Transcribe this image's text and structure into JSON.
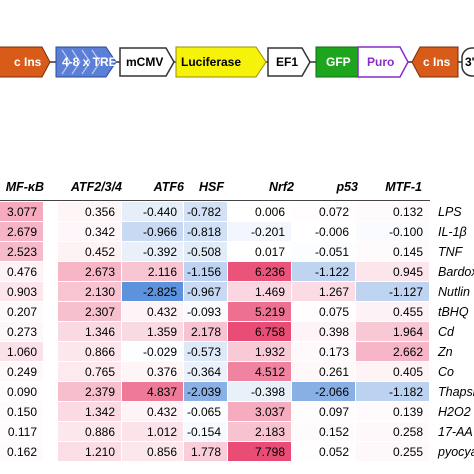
{
  "construct": {
    "elements": [
      "c Ins",
      "4-8 x TRE",
      "mCMV",
      "Luciferase",
      "EF1",
      "GFP",
      "Puro",
      "c Ins",
      "3'"
    ]
  },
  "heatmap": {
    "columns": [
      "NF-κB",
      "ATF2/3/4",
      "ATF6",
      "HSF",
      "Nrf2",
      "p53",
      "MTF-1"
    ],
    "header_display": [
      "MF-κB",
      "ATF2/3/4",
      "ATF6",
      "HSF",
      "Nrf2",
      "p53",
      "MTF-1"
    ],
    "rows": [
      {
        "treatment": "LPS",
        "values": [
          "3.077",
          "0.356",
          "-0.440",
          "-0.782",
          "0.006",
          "0.072",
          "0.132"
        ]
      },
      {
        "treatment": "IL-1β",
        "values": [
          "2.679",
          "0.342",
          "-0.966",
          "-0.818",
          "-0.201",
          "-0.006",
          "-0.100"
        ]
      },
      {
        "treatment": "TNF",
        "values": [
          "2.523",
          "0.452",
          "-0.392",
          "-0.508",
          "0.017",
          "-0.051",
          "0.145"
        ]
      },
      {
        "treatment": "Bardox",
        "values": [
          "0.476",
          "2.673",
          "2.116",
          "-1.156",
          "6.236",
          "-1.122",
          "0.945"
        ]
      },
      {
        "treatment": "Nutlin",
        "values": [
          "0.903",
          "2.130",
          "-2.825",
          "-0.967",
          "1.469",
          "1.267",
          "-1.127"
        ]
      },
      {
        "treatment": "tBHQ",
        "values": [
          "0.207",
          "2.307",
          "0.432",
          "-0.093",
          "5.219",
          "0.075",
          "0.455"
        ]
      },
      {
        "treatment": "Cd",
        "values": [
          "0.273",
          "1.346",
          "1.359",
          "2.178",
          "6.758",
          "0.398",
          "1.964"
        ]
      },
      {
        "treatment": "Zn",
        "values": [
          "1.060",
          "0.866",
          "-0.029",
          "-0.573",
          "1.932",
          "0.173",
          "2.662"
        ]
      },
      {
        "treatment": "Co",
        "values": [
          "0.249",
          "0.765",
          "0.376",
          "-0.364",
          "4.512",
          "0.261",
          "0.405"
        ]
      },
      {
        "treatment": "Thapsi",
        "values": [
          "0.090",
          "2.379",
          "4.837",
          "-2.039",
          "-0.398",
          "-2.066",
          "-1.182"
        ]
      },
      {
        "treatment": "H2O2",
        "values": [
          "0.150",
          "1.342",
          "0.432",
          "-0.065",
          "3.037",
          "0.097",
          "0.139"
        ]
      },
      {
        "treatment": "17-AA",
        "values": [
          "0.117",
          "0.886",
          "1.012",
          "-0.154",
          "2.183",
          "0.152",
          "0.258"
        ]
      },
      {
        "treatment": "pyocya",
        "values": [
          "0.162",
          "1.210",
          "0.856",
          "1.778",
          "7.798",
          "0.052",
          "0.255"
        ]
      }
    ]
  },
  "colors": {
    "positive": "#e8436e",
    "negative": "#4a86d8",
    "neutral": "#ffffff",
    "gfp": "#1ea51e",
    "luciferase": "#f7f20a",
    "tre": "#5b7fd6",
    "cins": "#d85b19",
    "puro": "#8a2bc9"
  }
}
